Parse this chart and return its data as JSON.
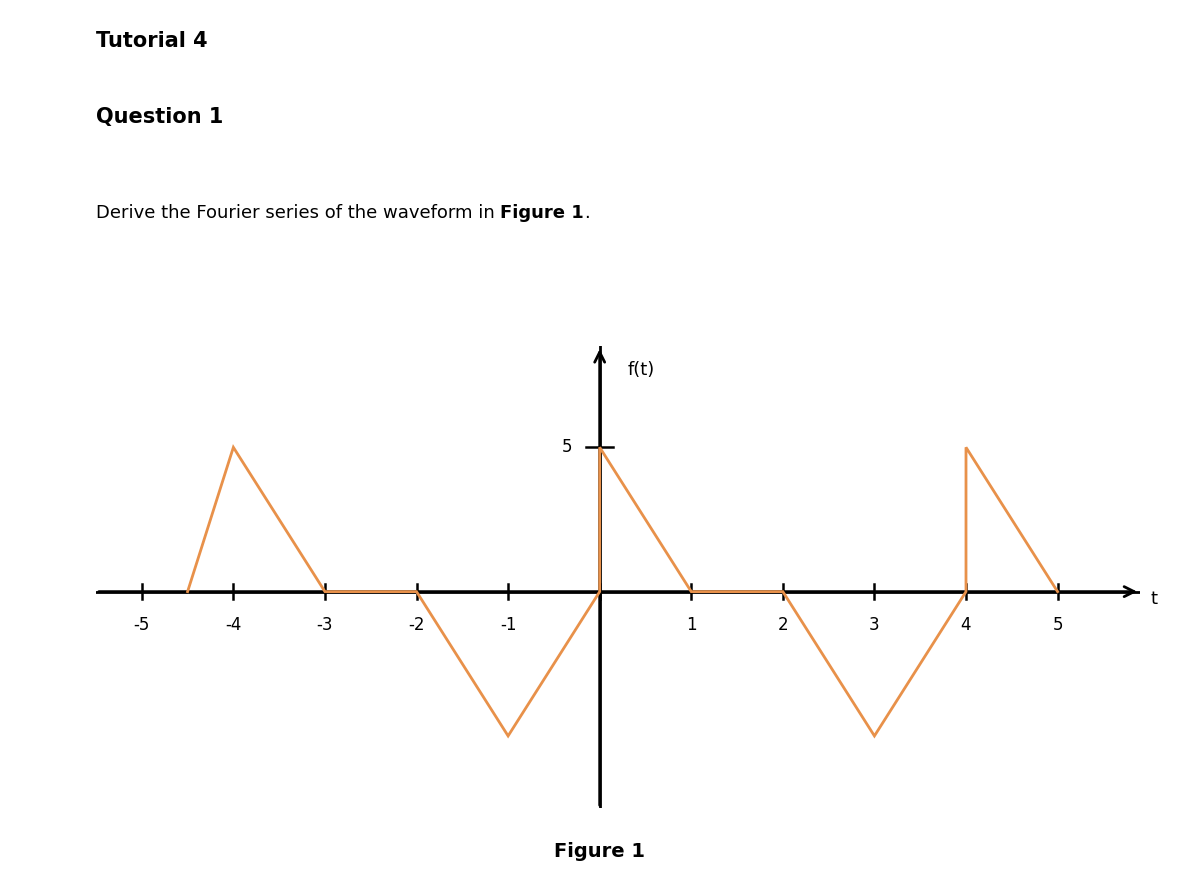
{
  "title_text": "Tutorial 4",
  "question_text": "Question 1",
  "description_normal": "Derive the Fourier series of the waveform in ",
  "description_bold": "Figure 1",
  "description_period": ".",
  "figure_caption": "Figure 1",
  "waveform_color": "#E8914A",
  "waveform_linewidth": 2.0,
  "xlim": [
    -5.5,
    5.9
  ],
  "ylim": [
    -7.5,
    8.5
  ],
  "xticks": [
    -5,
    -4,
    -3,
    -2,
    -1,
    0,
    1,
    2,
    3,
    4,
    5
  ],
  "ytick_val": 5,
  "xlabel": "t",
  "ylabel": "f(t)",
  "background_color": "#ffffff",
  "segments": [
    [
      [
        -4.5,
        0
      ],
      [
        -4,
        5
      ],
      [
        -3,
        0
      ],
      [
        -2,
        0
      ],
      [
        -1,
        -5
      ],
      [
        0,
        0
      ],
      [
        0,
        5
      ],
      [
        1,
        0
      ],
      [
        2,
        0
      ],
      [
        3,
        -5
      ],
      [
        4,
        0
      ],
      [
        4,
        5
      ],
      [
        5,
        0
      ]
    ]
  ]
}
